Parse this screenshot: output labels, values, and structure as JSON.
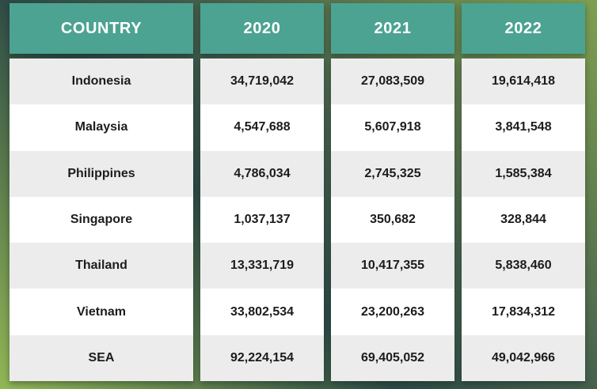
{
  "chart_data": {
    "type": "table",
    "columns": [
      "COUNTRY",
      "2020",
      "2021",
      "2022"
    ],
    "rows": [
      [
        "Indonesia",
        "34,719,042",
        "27,083,509",
        "19,614,418"
      ],
      [
        "Malaysia",
        "4,547,688",
        "5,607,918",
        "3,841,548"
      ],
      [
        "Philippines",
        "4,786,034",
        "2,745,325",
        "1,585,384"
      ],
      [
        "Singapore",
        "1,037,137",
        "350,682",
        "328,844"
      ],
      [
        "Thailand",
        "13,331,719",
        "10,417,355",
        "5,838,460"
      ],
      [
        "Vietnam",
        "33,802,534",
        "23,200,263",
        "17,834,312"
      ],
      [
        "SEA",
        "92,224,154",
        "69,405,052",
        "49,042,966"
      ]
    ],
    "title": "",
    "legend": null,
    "layout_hints": {
      "header_row": true,
      "alternating_rows": true,
      "last_row_is_total": true
    }
  },
  "colors": {
    "header_bg": "#4CA392",
    "header_text": "#FFFFFF",
    "cell_text": "#1C1C1C",
    "row_odd_bg": "#ECECEC",
    "row_even_bg": "#FFFFFF",
    "grad_bottom_left": "#92B755",
    "grad_dark_1": "#2E4A46",
    "grad_dark_2": "#46604D",
    "grad_top_right": "#7FA050"
  }
}
